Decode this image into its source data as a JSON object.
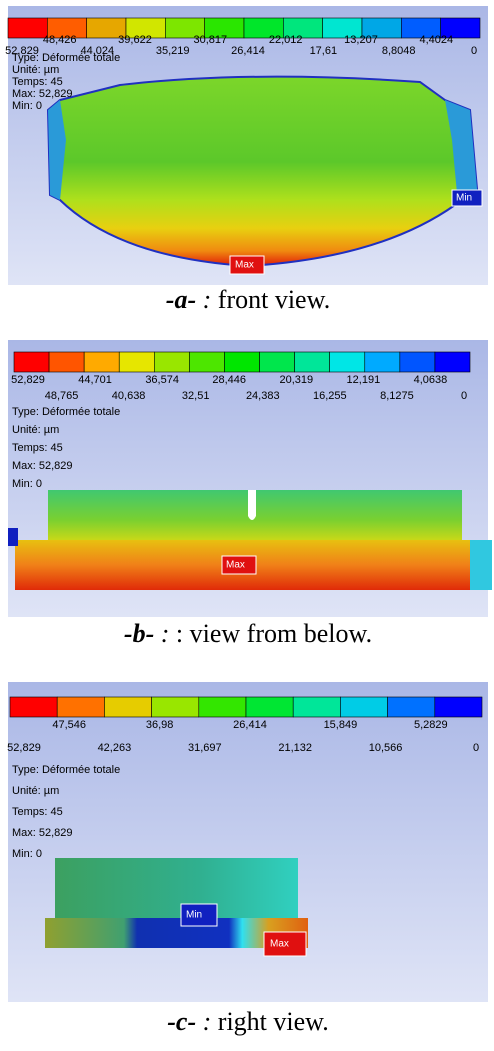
{
  "panels": [
    {
      "legend": {
        "upper_labels": [
          "48,426",
          "39,622",
          "30,817",
          "22,012",
          "13,207",
          "4,4024"
        ],
        "lower_labels": [
          "52,829",
          "44,024",
          "35,219",
          "26,414",
          "17,61",
          "8,8048",
          "0"
        ]
      },
      "info": [
        "Type: Déformée totale",
        "Unité: µm",
        "Temps: 45",
        "Max: 52,829",
        "Min: 0"
      ],
      "min_tag": "Min",
      "max_tag": "Max",
      "caption": {
        "label": "-a-",
        "colon": ":",
        "text": "front view."
      }
    },
    {
      "legend": {
        "upper_labels": [
          "52,829",
          "44,701",
          "36,574",
          "28,446",
          "20,319",
          "12,191",
          "4,0638"
        ],
        "lower_labels": [
          "48,765",
          "40,638",
          "32,51",
          "24,383",
          "16,255",
          "8,1275",
          "0"
        ]
      },
      "info": [
        "Type: Déformée totale",
        "Unité: µm",
        "Temps: 45",
        "Max: 52,829",
        "Min: 0"
      ],
      "max_tag": "Max",
      "caption": {
        "label": "-b-",
        "colon": ":",
        "text": ": view from below."
      }
    },
    {
      "legend": {
        "upper_labels": [
          "47,546",
          "36,98",
          "26,414",
          "15,849",
          "5,2829"
        ],
        "lower_labels": [
          "52,829",
          "42,263",
          "31,697",
          "21,132",
          "10,566",
          "0"
        ]
      },
      "info": [
        "Type: Déformée totale",
        "Unité: µm",
        "Temps: 45",
        "Max: 52,829",
        "Min: 0"
      ],
      "min_tag": "Min",
      "max_tag": "Max",
      "caption": {
        "label": "-c-",
        "colon": ":",
        "text": "right view."
      }
    }
  ]
}
